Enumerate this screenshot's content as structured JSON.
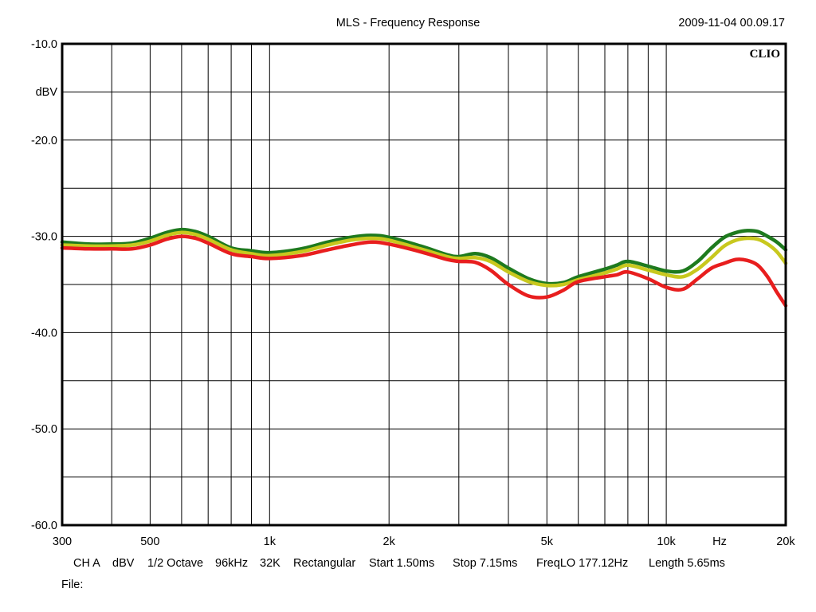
{
  "chart_data": {
    "type": "line",
    "title": "MLS - Frequency Response",
    "timestamp": "2009-11-04 00.09.17",
    "brand": "CLIO",
    "ylabel": "dBV",
    "xlabel": "Hz",
    "x_scale": "log",
    "xlim": [
      300,
      20000
    ],
    "ylim": [
      -60,
      -10
    ],
    "grid": true,
    "y_ticks": [
      {
        "value": -10,
        "label": "-10.0"
      },
      {
        "value": -20,
        "label": "-20.0"
      },
      {
        "value": -30,
        "label": "-30.0"
      },
      {
        "value": -40,
        "label": "-40.0"
      },
      {
        "value": -50,
        "label": "-50.0"
      },
      {
        "value": -60,
        "label": "-60.0"
      }
    ],
    "y_minor_ticks": [
      -15,
      -25,
      -35,
      -45,
      -55
    ],
    "x_ticks": [
      {
        "value": 300,
        "label": "300"
      },
      {
        "value": 500,
        "label": "500"
      },
      {
        "value": 1000,
        "label": "1k"
      },
      {
        "value": 2000,
        "label": "2k"
      },
      {
        "value": 5000,
        "label": "5k"
      },
      {
        "value": 10000,
        "label": "10k"
      },
      {
        "value": 20000,
        "label": "20k"
      }
    ],
    "x_grid": [
      400,
      500,
      600,
      700,
      800,
      900,
      1000,
      2000,
      3000,
      4000,
      5000,
      6000,
      7000,
      8000,
      9000,
      10000
    ],
    "series": [
      {
        "color": "#1e7a1e",
        "x": [
          300,
          350,
          400,
          450,
          500,
          550,
          600,
          650,
          700,
          800,
          900,
          1000,
          1200,
          1400,
          1600,
          1800,
          2000,
          2400,
          2800,
          3000,
          3300,
          3600,
          4000,
          4500,
          5000,
          5500,
          6000,
          7000,
          7500,
          8000,
          9000,
          10000,
          11000,
          12000,
          13000,
          14000,
          15000,
          16000,
          17000,
          18000,
          19000,
          20000
        ],
        "y": [
          -30.6,
          -30.8,
          -30.8,
          -30.7,
          -30.2,
          -29.6,
          -29.3,
          -29.5,
          -30.0,
          -31.2,
          -31.5,
          -31.7,
          -31.3,
          -30.6,
          -30.1,
          -29.9,
          -30.1,
          -31.0,
          -31.9,
          -32.1,
          -31.8,
          -32.2,
          -33.3,
          -34.4,
          -34.9,
          -34.8,
          -34.2,
          -33.4,
          -33.0,
          -32.6,
          -33.1,
          -33.6,
          -33.6,
          -32.6,
          -31.2,
          -30.1,
          -29.6,
          -29.4,
          -29.5,
          -30.0,
          -30.6,
          -31.4
        ]
      },
      {
        "color": "#c8c81e",
        "x": [
          300,
          350,
          400,
          450,
          500,
          550,
          600,
          650,
          700,
          800,
          900,
          1000,
          1200,
          1400,
          1600,
          1800,
          2000,
          2400,
          2800,
          3000,
          3300,
          3600,
          4000,
          4500,
          5000,
          5500,
          6000,
          7000,
          7500,
          8000,
          9000,
          10000,
          11000,
          12000,
          13000,
          14000,
          15000,
          16000,
          17000,
          18000,
          19000,
          20000
        ],
        "y": [
          -30.9,
          -31.0,
          -31.0,
          -30.9,
          -30.5,
          -29.9,
          -29.6,
          -29.8,
          -30.3,
          -31.4,
          -31.8,
          -32.0,
          -31.6,
          -30.9,
          -30.4,
          -30.2,
          -30.4,
          -31.3,
          -32.1,
          -32.3,
          -32.2,
          -32.6,
          -33.7,
          -34.7,
          -35.1,
          -35.0,
          -34.5,
          -33.8,
          -33.4,
          -33.0,
          -33.5,
          -34.0,
          -34.2,
          -33.4,
          -32.2,
          -31.0,
          -30.4,
          -30.2,
          -30.3,
          -30.8,
          -31.6,
          -32.8
        ]
      },
      {
        "color": "#e81e1e",
        "x": [
          300,
          350,
          400,
          450,
          500,
          550,
          600,
          650,
          700,
          800,
          900,
          1000,
          1200,
          1400,
          1600,
          1800,
          2000,
          2400,
          2800,
          3000,
          3300,
          3600,
          4000,
          4500,
          5000,
          5500,
          6000,
          7000,
          7500,
          8000,
          9000,
          10000,
          11000,
          12000,
          13000,
          14000,
          15000,
          16000,
          17000,
          18000,
          19000,
          20000
        ],
        "y": [
          -31.2,
          -31.3,
          -31.3,
          -31.3,
          -30.9,
          -30.3,
          -30.0,
          -30.2,
          -30.7,
          -31.8,
          -32.1,
          -32.3,
          -32.0,
          -31.4,
          -30.9,
          -30.6,
          -30.8,
          -31.6,
          -32.4,
          -32.6,
          -32.7,
          -33.5,
          -35.0,
          -36.2,
          -36.3,
          -35.6,
          -34.7,
          -34.2,
          -34.0,
          -33.7,
          -34.4,
          -35.3,
          -35.5,
          -34.4,
          -33.3,
          -32.8,
          -32.4,
          -32.5,
          -33.0,
          -34.2,
          -35.8,
          -37.2
        ]
      }
    ]
  },
  "status_bar": {
    "channel": "CH A",
    "unit": "dBV",
    "smoothing": "1/2 Octave",
    "sample_rate": "96kHz",
    "size": "32K",
    "window": "Rectangular",
    "start": "Start 1.50ms",
    "stop": "Stop 7.15ms",
    "freq_lo": "FreqLO 177.12Hz",
    "length": "Length 5.65ms"
  },
  "file_label": "File:"
}
